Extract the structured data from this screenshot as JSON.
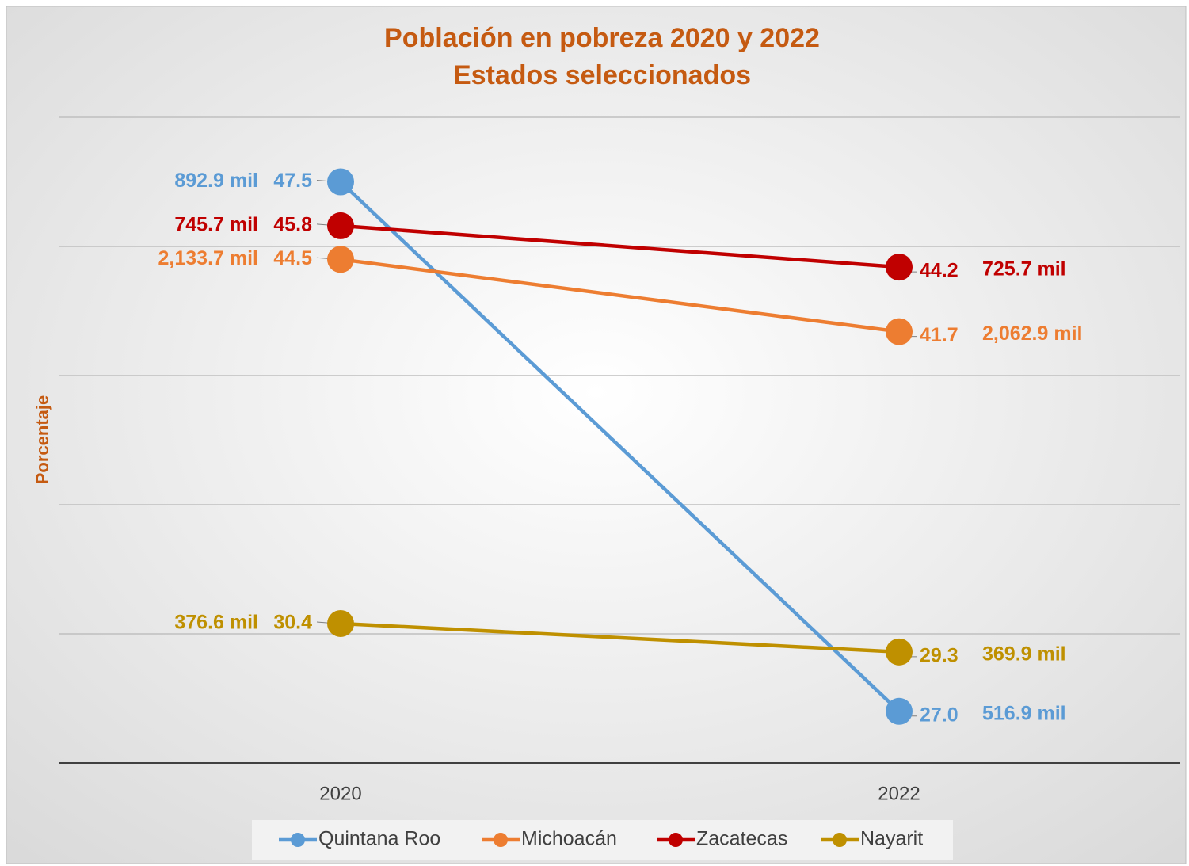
{
  "chart_data": {
    "type": "line",
    "title": "Población en pobreza 2020 y 2022",
    "subtitle": "Estados seleccionados",
    "y_label": "Porcentaje",
    "categories": [
      "2020",
      "2022"
    ],
    "ylim": [
      25,
      50
    ],
    "yticks": [
      25,
      30,
      35,
      40,
      45,
      50
    ],
    "grid": true,
    "legend": "bottom",
    "series": [
      {
        "name": "Quintana Roo",
        "color": "#5b9bd5",
        "values": [
          47.5,
          27.0
        ],
        "value_labels": [
          "47.5",
          "27.0"
        ],
        "population_labels": [
          "892.9 mil",
          "516.9 mil"
        ]
      },
      {
        "name": "Michoacán",
        "color": "#ed7d31",
        "values": [
          44.5,
          41.7
        ],
        "value_labels": [
          "44.5",
          "41.7"
        ],
        "population_labels": [
          "2,133.7 mil",
          "2,062.9 mil"
        ]
      },
      {
        "name": "Zacatecas",
        "color": "#c00000",
        "values": [
          45.8,
          44.2
        ],
        "value_labels": [
          "45.8",
          "44.2"
        ],
        "population_labels": [
          "745.7 mil",
          "725.7 mil"
        ]
      },
      {
        "name": "Nayarit",
        "color": "#bf9000",
        "values": [
          30.4,
          29.3
        ],
        "value_labels": [
          "30.4",
          "29.3"
        ],
        "population_labels": [
          "376.6 mil",
          "369.9 mil"
        ]
      }
    ]
  }
}
